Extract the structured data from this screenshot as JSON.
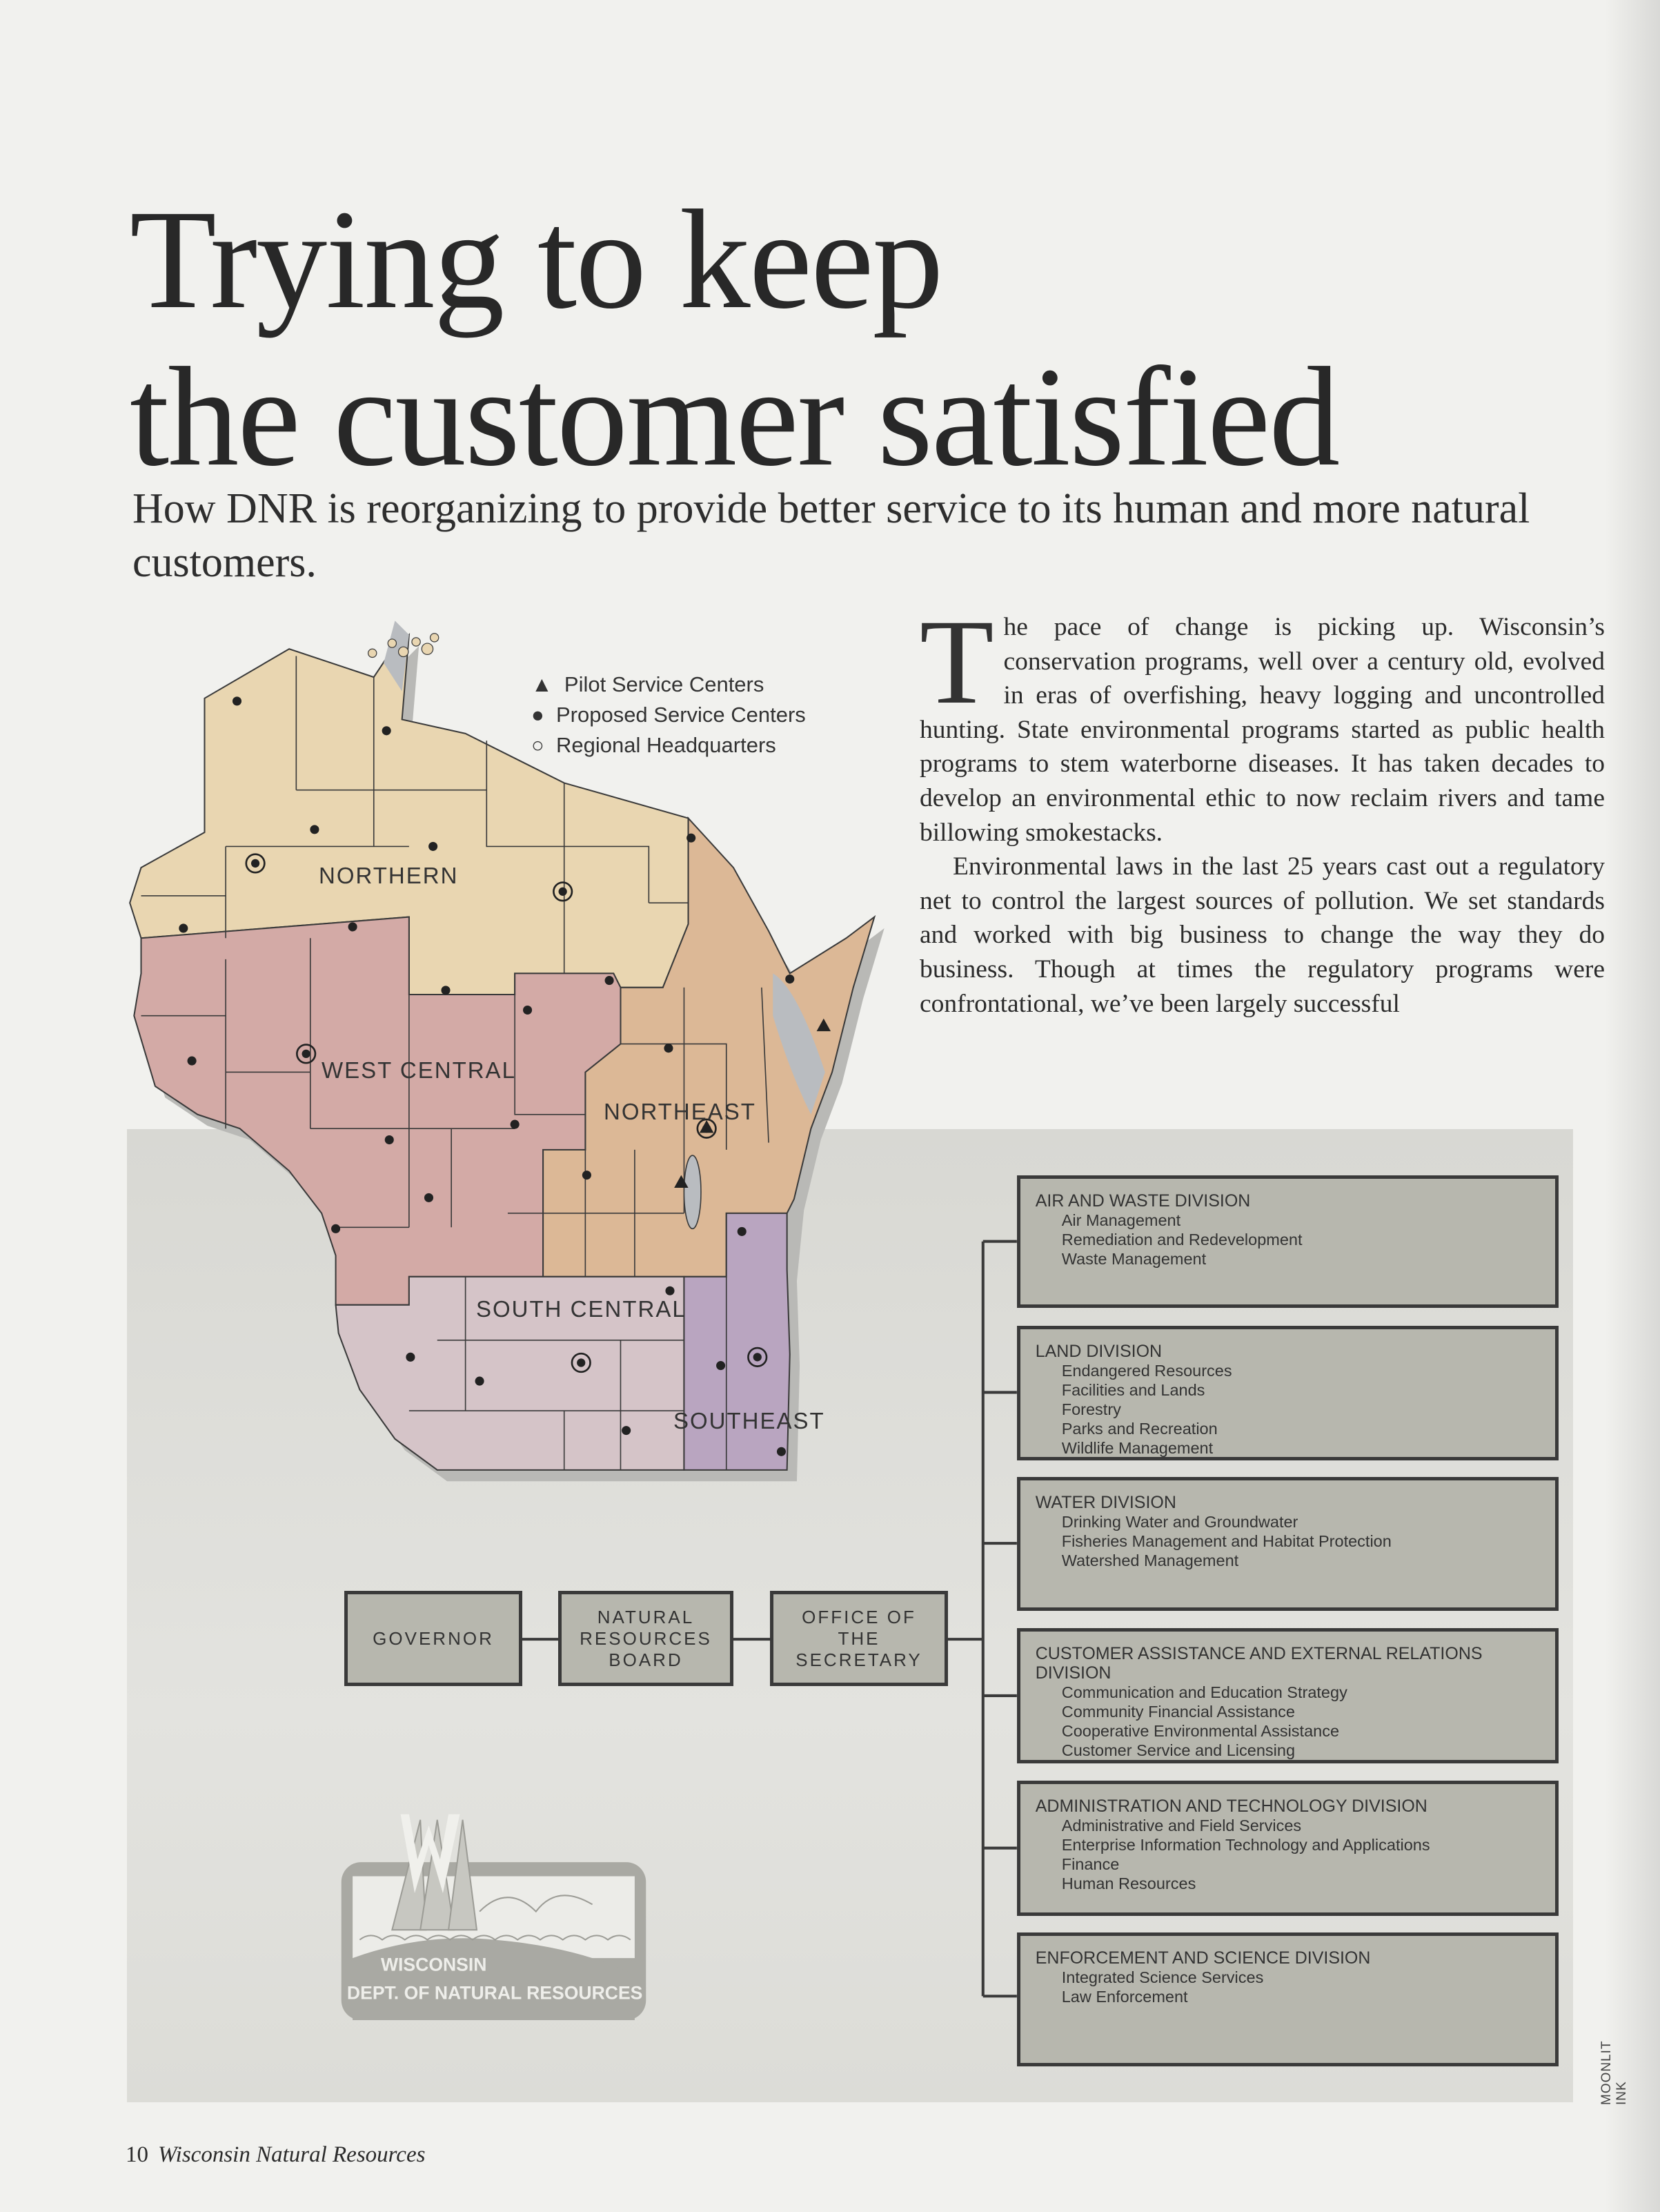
{
  "article": {
    "title_line1": "Trying to keep",
    "title_line2": "the customer satisfied",
    "subtitle": "How DNR is reorganizing to provide better service to its human and more natural customers.",
    "drop_cap": "T",
    "paragraph1_rest": "he pace of change is picking up. Wisconsin’s conservation programs, well over a century old, evolved in eras of overfishing, heavy logging and uncontrolled hunting. State environmental programs started as public health programs to stem waterborne diseases. It has taken decades to develop an environmental ethic to now reclaim rivers and tame billowing smokestacks.",
    "paragraph2": "Environmental laws in the last 25 years cast out a regulatory net to control the largest sources of pollution. We set standards and worked with big business to change the way they do business. Though at times the regulatory programs were confrontational, we’ve been largely successful"
  },
  "map": {
    "legend": {
      "pilot": "Pilot Service Centers",
      "proposed": "Proposed Service Centers",
      "hq": "Regional Headquarters"
    },
    "regions": [
      "NORTHERN",
      "WEST CENTRAL",
      "NORTHEAST",
      "SOUTH CENTRAL",
      "SOUTHEAST"
    ],
    "colors": {
      "northern": "#e9d6b1",
      "west_central": "#d3aaa6",
      "northeast": "#dcb896",
      "south_central": "#d5c4c8",
      "southeast": "#b9a5c0"
    }
  },
  "org_chart": {
    "top": [
      "GOVERNOR",
      "NATURAL RESOURCES BOARD",
      "OFFICE OF THE SECRETARY"
    ],
    "divisions": [
      {
        "title": "AIR AND WASTE DIVISION",
        "items": [
          "Air Management",
          "Remediation and Redevelopment",
          "Waste Management"
        ]
      },
      {
        "title": "LAND DIVISION",
        "items": [
          "Endangered Resources",
          "Facilities and Lands",
          "Forestry",
          "Parks and Recreation",
          "Wildlife Management"
        ]
      },
      {
        "title": "WATER DIVISION",
        "items": [
          "Drinking Water and Groundwater",
          "Fisheries Management and Habitat Protection",
          "Watershed Management"
        ]
      },
      {
        "title": "CUSTOMER ASSISTANCE AND EXTERNAL RELATIONS DIVISION",
        "items": [
          "Communication and Education Strategy",
          "Community Financial Assistance",
          "Cooperative Environmental Assistance",
          "Customer Service and Licensing"
        ]
      },
      {
        "title": "ADMINISTRATION AND TECHNOLOGY DIVISION",
        "items": [
          "Administrative and Field Services",
          "Enterprise Information Technology and Applications",
          "Finance",
          "Human Resources"
        ]
      },
      {
        "title": "ENFORCEMENT AND SCIENCE DIVISION",
        "items": [
          "Integrated Science Services",
          "Law Enforcement"
        ]
      }
    ]
  },
  "logo": {
    "line1": "WISCONSIN",
    "line2": "DEPT. OF NATURAL RESOURCES"
  },
  "footer": {
    "page_number": "10",
    "magazine": "Wisconsin Natural Resources"
  },
  "credit": "MOONLIT INK"
}
